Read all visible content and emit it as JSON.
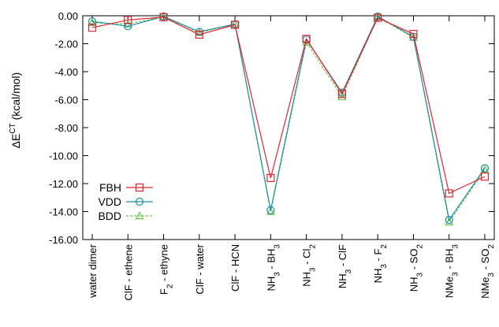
{
  "chart_data": {
    "type": "line",
    "title": "",
    "xlabel": "",
    "ylabel": "ΔE^CT (kcal/mol)",
    "ylabel_parts": {
      "base": "ΔE",
      "sup": "CT",
      "unit": "(kcal/mol)"
    },
    "ylim": [
      -16,
      0
    ],
    "yticks": [
      "0.00",
      "-2.00",
      "-4.00",
      "-6.00",
      "-8.00",
      "-10.00",
      "-12.00",
      "-14.00",
      "-16.00"
    ],
    "ytick_values": [
      0,
      -2,
      -4,
      -6,
      -8,
      -10,
      -12,
      -14,
      -16
    ],
    "grid": false,
    "legend_position": "bottom-left",
    "categories": [
      "water dimer",
      "ClF - ethene",
      "F2 - ethyne",
      "ClF - water",
      "ClF - HCN",
      "NH3 - BH3",
      "NH3 - Cl2",
      "NH3 - ClF",
      "NH3 - F2",
      "NH3 - SO2",
      "NMe3 - BH3",
      "NMe3 - SO2"
    ],
    "category_labels": [
      [
        {
          "t": "water dimer"
        }
      ],
      [
        {
          "t": "ClF - ethene"
        }
      ],
      [
        {
          "t": "F"
        },
        {
          "t": "2",
          "sub": true
        },
        {
          "t": " - ethyne"
        }
      ],
      [
        {
          "t": "ClF - water"
        }
      ],
      [
        {
          "t": "ClF - HCN"
        }
      ],
      [
        {
          "t": "NH"
        },
        {
          "t": "3",
          "sub": true
        },
        {
          "t": " - BH"
        },
        {
          "t": "3",
          "sub": true
        }
      ],
      [
        {
          "t": "NH"
        },
        {
          "t": "3",
          "sub": true
        },
        {
          "t": " - Cl"
        },
        {
          "t": "2",
          "sub": true
        }
      ],
      [
        {
          "t": "NH"
        },
        {
          "t": "3",
          "sub": true
        },
        {
          "t": " - ClF"
        }
      ],
      [
        {
          "t": "NH"
        },
        {
          "t": "3",
          "sub": true
        },
        {
          "t": " - F"
        },
        {
          "t": "2",
          "sub": true
        }
      ],
      [
        {
          "t": "NH"
        },
        {
          "t": "3",
          "sub": true
        },
        {
          "t": " - SO"
        },
        {
          "t": "2",
          "sub": true
        }
      ],
      [
        {
          "t": "NMe"
        },
        {
          "t": "3",
          "sub": true
        },
        {
          "t": " - BH"
        },
        {
          "t": "3",
          "sub": true
        }
      ],
      [
        {
          "t": "NMe"
        },
        {
          "t": "3",
          "sub": true
        },
        {
          "t": " - SO"
        },
        {
          "t": "2",
          "sub": true
        }
      ]
    ],
    "series": [
      {
        "name": "FBH",
        "color": "#e0262c",
        "marker": "square",
        "dash": "solid",
        "values": [
          -0.85,
          -0.3,
          -0.1,
          -1.35,
          -0.65,
          -11.6,
          -1.65,
          -5.6,
          -0.15,
          -1.3,
          -12.7,
          -11.5
        ]
      },
      {
        "name": "VDD",
        "color": "#1b8ea3",
        "marker": "circle",
        "dash": "solid",
        "values": [
          -0.4,
          -0.75,
          -0.05,
          -1.15,
          -0.6,
          -13.9,
          -1.7,
          -5.5,
          -0.05,
          -1.5,
          -14.6,
          -10.9
        ]
      },
      {
        "name": "BDD",
        "color": "#6cc24a",
        "marker": "triangle",
        "dash": "dashed",
        "values": [
          -0.5,
          -0.6,
          -0.05,
          -1.2,
          -0.6,
          -14.0,
          -1.9,
          -5.8,
          -0.1,
          -1.55,
          -14.75,
          -11.0
        ]
      }
    ]
  }
}
